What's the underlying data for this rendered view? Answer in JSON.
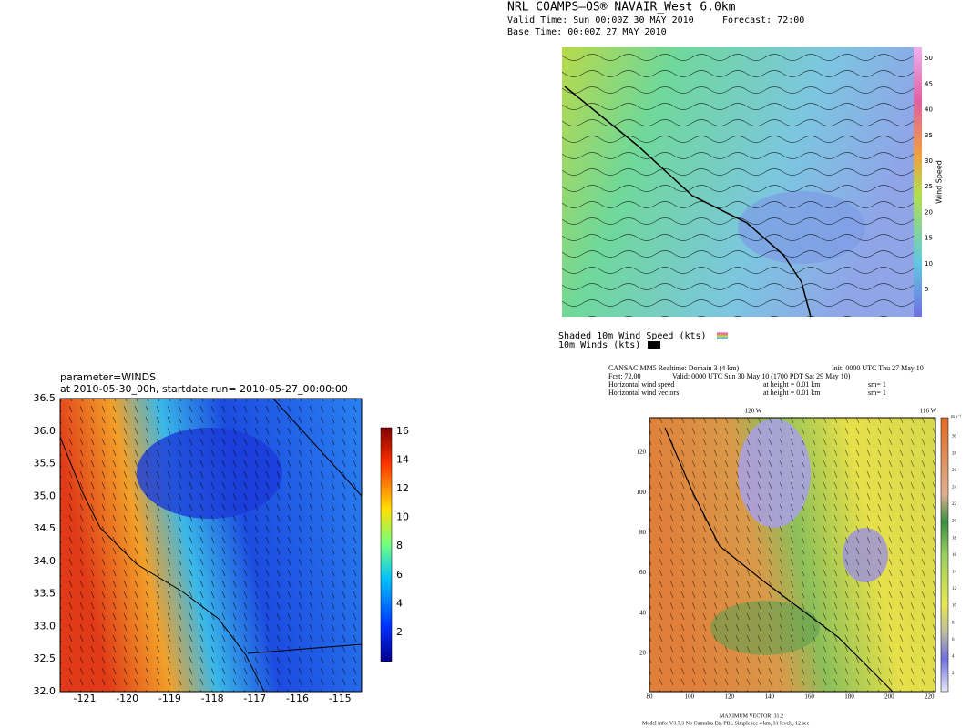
{
  "coamps": {
    "title": "NRL COAMPS—OS® NAVAIR_West 6.0km",
    "valid": "Valid Time: Sun 00:00Z 30 MAY 2010",
    "forecast": "Forecast: 72:00",
    "base": "Base Time: 00:00Z 27 MAY 2010",
    "colorbar_label": "Wind Speed",
    "colorbar_ticks": [
      "5",
      "10",
      "15",
      "20",
      "25",
      "30",
      "35",
      "40",
      "45",
      "50"
    ],
    "legend": [
      "Shaded 10m Wind Speed (kts)",
      "10m Winds (kts)"
    ]
  },
  "wrf": {
    "title": "parameter=WINDS",
    "subtitle": "at 2010-05-30_00h, startdate run= 2010-05-27_00:00:00",
    "yticks": [
      "32.0",
      "32.5",
      "33.0",
      "33.5",
      "34.0",
      "34.5",
      "35.0",
      "35.5",
      "36.0",
      "36.5"
    ],
    "xticks": [
      "-121",
      "-120",
      "-119",
      "-118",
      "-117",
      "-116",
      "-115"
    ],
    "colorbar_ticks": [
      "2",
      "4",
      "6",
      "8",
      "10",
      "12",
      "14",
      "16"
    ]
  },
  "mm5": {
    "header": [
      "CANSAC MM5 Realtime: Domain 3  (4 km)",
      "Init: 0000 UTC Thu 27 May 10",
      "Fcst:    72.00",
      "Valid: 0000 UTC Sun 30 May 10 (1700 PDT Sat 29 May 10)",
      "Horizontal wind speed",
      "at height = 0.01 km",
      "sm= 1",
      "Horizontal wind vectors",
      "at height = 0.01 km",
      "sm= 1"
    ],
    "top_labels": [
      "120 W",
      "116 W"
    ],
    "xticks": [
      "80",
      "100",
      "120",
      "140",
      "160",
      "180",
      "200",
      "220"
    ],
    "yticks": [
      "20",
      "40",
      "60",
      "80",
      "100",
      "120"
    ],
    "colorbar_unit": "m s⁻¹",
    "colorbar_ticks": [
      "2",
      "4",
      "6",
      "8",
      "10",
      "12",
      "14",
      "16",
      "18",
      "20",
      "22",
      "24",
      "26",
      "28",
      "30"
    ],
    "footer": [
      "MAXIMUM VECTOR:  31.2",
      "Model info: V3.7.3 No Cumulus Eta PBL  Simple ice    4 km, 31 levels,   12 sec"
    ]
  }
}
